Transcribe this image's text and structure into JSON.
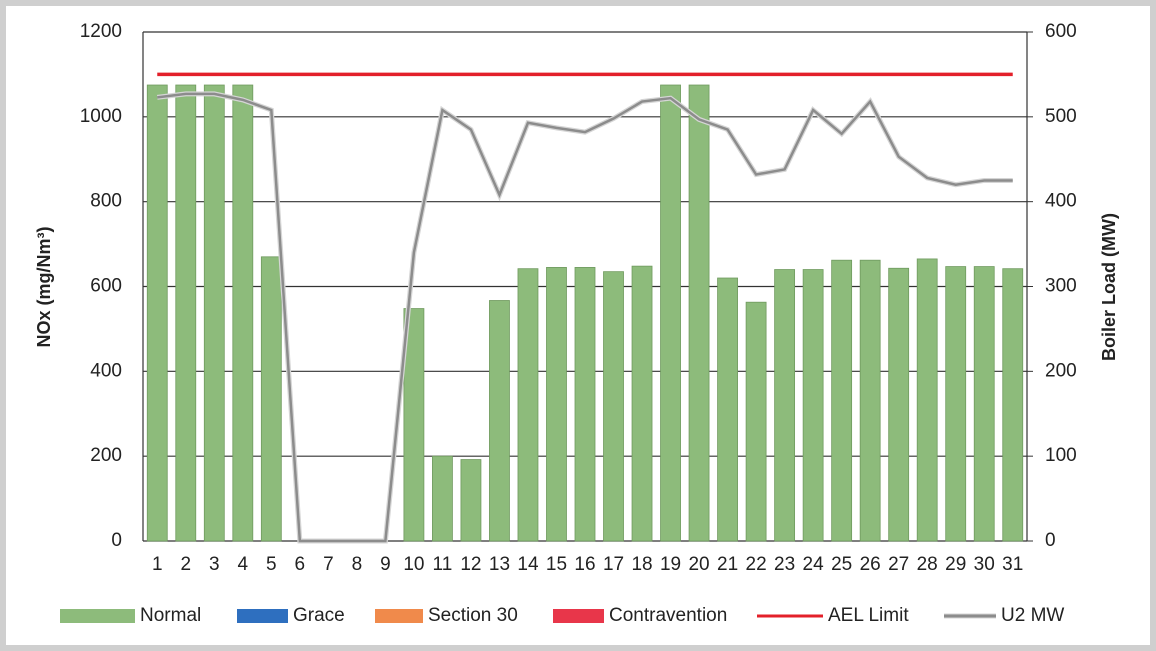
{
  "chart_data": {
    "type": "bar",
    "categories": [
      "1",
      "2",
      "3",
      "4",
      "5",
      "6",
      "7",
      "8",
      "9",
      "10",
      "11",
      "12",
      "13",
      "14",
      "15",
      "16",
      "17",
      "18",
      "19",
      "20",
      "21",
      "22",
      "23",
      "24",
      "25",
      "26",
      "27",
      "28",
      "29",
      "30",
      "31"
    ],
    "y_label": "NOx (mg/Nm³)",
    "y2_label": "Boiler Load (MW)",
    "ylim": [
      0,
      1200
    ],
    "yticks": [
      0,
      200,
      400,
      600,
      800,
      1000,
      1200
    ],
    "y2lim": [
      0,
      600
    ],
    "y2ticks": [
      0,
      100,
      200,
      300,
      400,
      500,
      600
    ],
    "grid": true,
    "legend": "bottom",
    "series": [
      {
        "name": "Normal",
        "color": "#8dbb7b",
        "type": "bar",
        "values": [
          1075,
          1075,
          1075,
          1075,
          670,
          0,
          0,
          0,
          0,
          548,
          200,
          192,
          567,
          642,
          645,
          645,
          635,
          648,
          1075,
          1075,
          620,
          563,
          640,
          640,
          662,
          662,
          643,
          665,
          647,
          647,
          642
        ]
      },
      {
        "name": "Grace",
        "color": "#2e6fbf",
        "type": "bar",
        "values": [
          0,
          0,
          0,
          0,
          0,
          0,
          0,
          0,
          0,
          0,
          0,
          0,
          0,
          0,
          0,
          0,
          0,
          0,
          0,
          0,
          0,
          0,
          0,
          0,
          0,
          0,
          0,
          0,
          0,
          0,
          0
        ]
      },
      {
        "name": "Section 30",
        "color": "#f08a4b",
        "type": "bar",
        "values": [
          0,
          0,
          0,
          0,
          0,
          0,
          0,
          0,
          0,
          0,
          0,
          0,
          0,
          0,
          0,
          0,
          0,
          0,
          0,
          0,
          0,
          0,
          0,
          0,
          0,
          0,
          0,
          0,
          0,
          0,
          0
        ]
      },
      {
        "name": "Contravention",
        "color": "#e8364a",
        "type": "bar",
        "values": [
          0,
          0,
          0,
          0,
          0,
          0,
          0,
          0,
          0,
          0,
          0,
          0,
          0,
          0,
          0,
          0,
          0,
          0,
          0,
          0,
          0,
          0,
          0,
          0,
          0,
          0,
          0,
          0,
          0,
          0,
          0
        ]
      },
      {
        "name": "AEL Limit",
        "color": "#e3202a",
        "type": "line",
        "values": [
          1100,
          1100,
          1100,
          1100,
          1100,
          1100,
          1100,
          1100,
          1100,
          1100,
          1100,
          1100,
          1100,
          1100,
          1100,
          1100,
          1100,
          1100,
          1100,
          1100,
          1100,
          1100,
          1100,
          1100,
          1100,
          1100,
          1100,
          1100,
          1100,
          1100,
          1100
        ]
      },
      {
        "name": "U2 MW",
        "color": "#8c8c8c",
        "type": "line",
        "axis": "y2",
        "values": [
          523,
          527,
          527,
          520,
          508,
          0,
          0,
          0,
          0,
          340,
          508,
          485,
          408,
          493,
          487,
          482,
          498,
          518,
          522,
          497,
          485,
          432,
          438,
          508,
          480,
          518,
          453,
          428,
          420,
          425,
          425
        ]
      }
    ]
  }
}
